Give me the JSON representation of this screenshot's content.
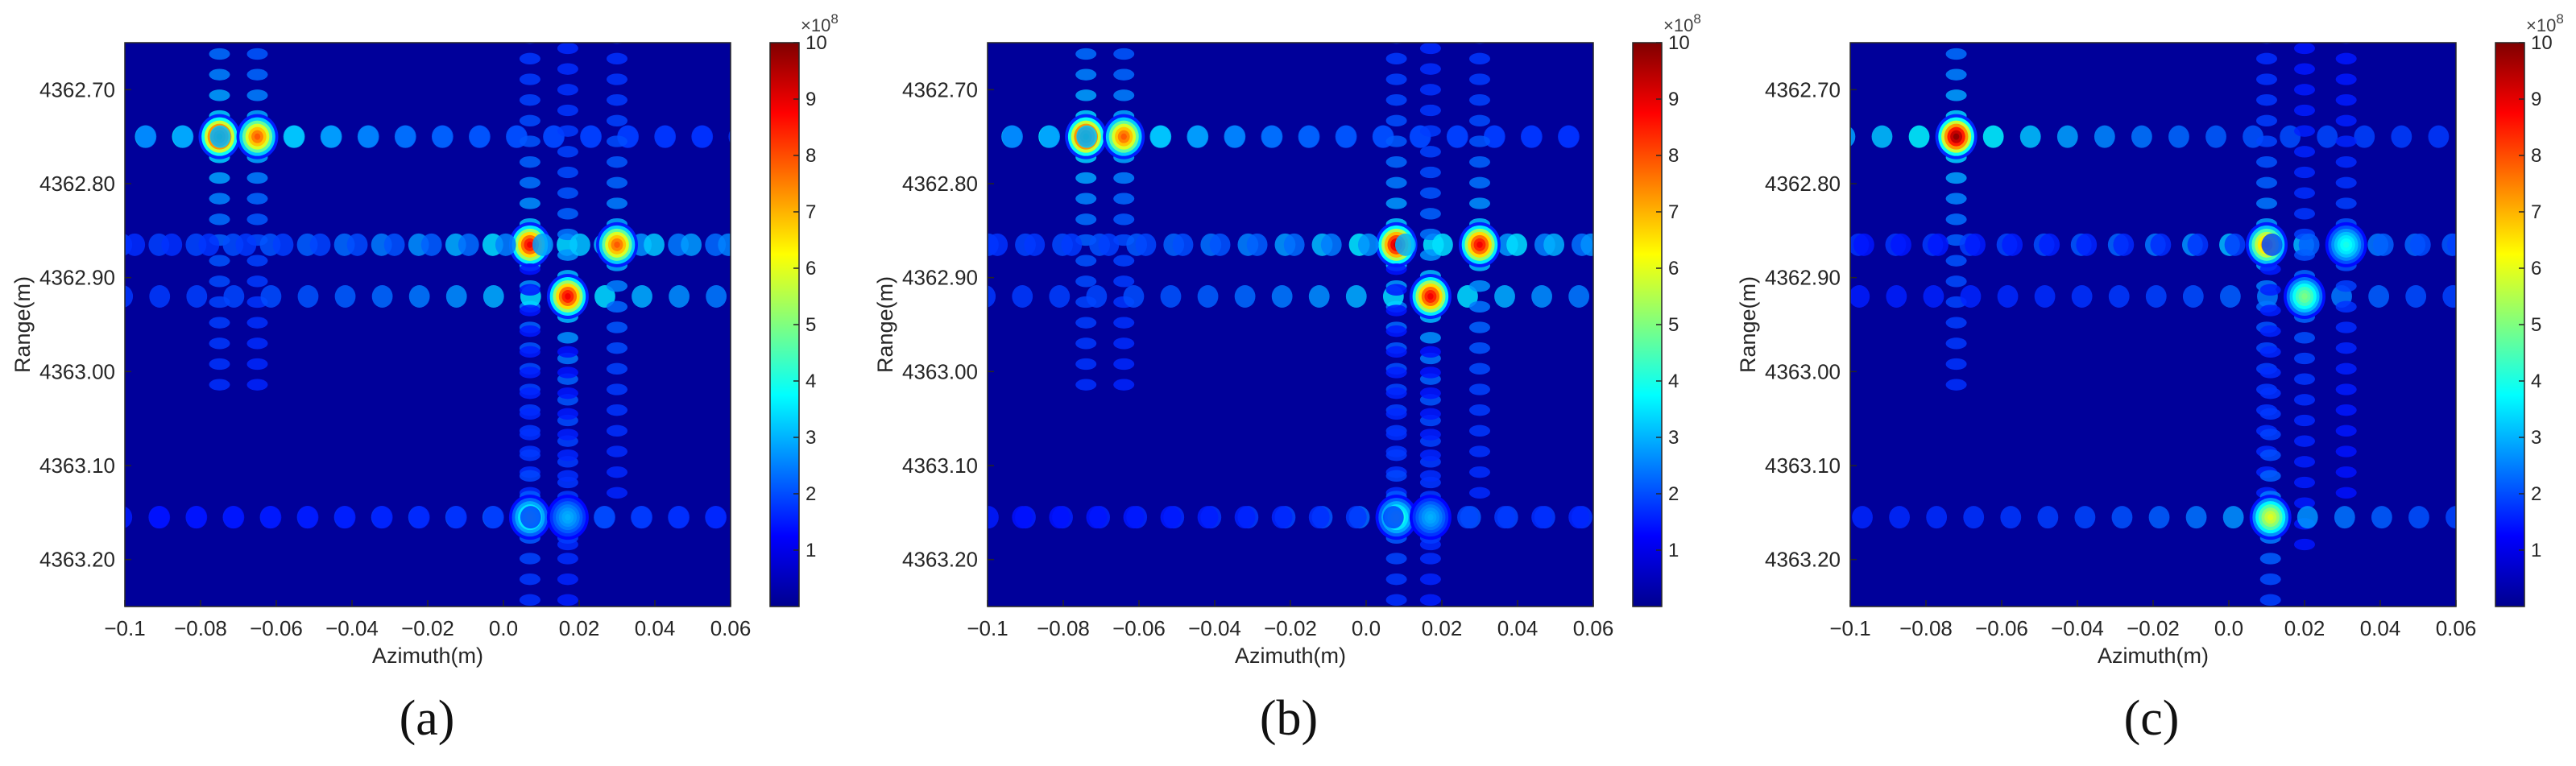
{
  "colors": {
    "colormap": [
      "#00008f",
      "#0000ff",
      "#0080ff",
      "#00ffff",
      "#80ff80",
      "#ffff00",
      "#ff8000",
      "#ff0000",
      "#800000"
    ],
    "axis": "#262626"
  },
  "chart_data": [
    {
      "type": "heatmap",
      "panel_label": "(a)",
      "xlabel": "Azimuth(m)",
      "ylabel": "Range(m)",
      "xlim": [
        -0.1,
        0.06
      ],
      "ylim": [
        4362.65,
        4363.25
      ],
      "y_reversed": true,
      "x_ticks": [
        "−0.1",
        "−0.08",
        "−0.06",
        "−0.04",
        "−0.02",
        "0.0",
        "0.02",
        "0.04",
        "0.06"
      ],
      "y_ticks": [
        "4362.70",
        "4362.80",
        "4362.90",
        "4363.00",
        "4363.10",
        "4363.20"
      ],
      "colorbar": {
        "min": 0,
        "max": 10,
        "ticks": [
          "1",
          "2",
          "3",
          "4",
          "5",
          "6",
          "7",
          "8",
          "9",
          "10"
        ],
        "exponent": "×10",
        "exponent_power": "8"
      },
      "peaks": [
        {
          "x": -0.075,
          "y": 4362.75,
          "value": 10
        },
        {
          "x": -0.065,
          "y": 4362.75,
          "value": 8
        },
        {
          "x": 0.007,
          "y": 4362.865,
          "value": 9
        },
        {
          "x": 0.017,
          "y": 4362.92,
          "value": 9
        },
        {
          "x": 0.03,
          "y": 4362.865,
          "value": 8
        },
        {
          "x": 0.007,
          "y": 4363.155,
          "value": 4.5
        },
        {
          "x": 0.017,
          "y": 4363.155,
          "value": 3
        }
      ]
    },
    {
      "type": "heatmap",
      "panel_label": "(b)",
      "xlabel": "Azimuth(m)",
      "ylabel": "Range(m)",
      "xlim": [
        -0.1,
        0.06
      ],
      "ylim": [
        4362.65,
        4363.25
      ],
      "y_reversed": true,
      "x_ticks": [
        "−0.1",
        "−0.08",
        "−0.06",
        "−0.04",
        "−0.02",
        "0.0",
        "0.02",
        "0.04",
        "0.06"
      ],
      "y_ticks": [
        "4362.70",
        "4362.80",
        "4362.90",
        "4363.00",
        "4363.10",
        "4363.20"
      ],
      "colorbar": {
        "min": 0,
        "max": 10,
        "ticks": [
          "1",
          "2",
          "3",
          "4",
          "5",
          "6",
          "7",
          "8",
          "9",
          "10"
        ],
        "exponent": "×10",
        "exponent_power": "8"
      },
      "peaks": [
        {
          "x": -0.074,
          "y": 4362.75,
          "value": 10
        },
        {
          "x": -0.064,
          "y": 4362.75,
          "value": 8
        },
        {
          "x": 0.008,
          "y": 4362.865,
          "value": 9.5
        },
        {
          "x": 0.017,
          "y": 4362.92,
          "value": 9
        },
        {
          "x": 0.03,
          "y": 4362.865,
          "value": 9
        },
        {
          "x": 0.008,
          "y": 4363.155,
          "value": 4.5
        },
        {
          "x": 0.017,
          "y": 4363.155,
          "value": 3
        }
      ]
    },
    {
      "type": "heatmap",
      "panel_label": "(c)",
      "xlabel": "Azimuth(m)",
      "ylabel": "Range(m)",
      "xlim": [
        -0.1,
        0.06
      ],
      "ylim": [
        4362.65,
        4363.25
      ],
      "y_reversed": true,
      "x_ticks": [
        "−0.1",
        "−0.08",
        "−0.06",
        "−0.04",
        "−0.02",
        "0.0",
        "0.02",
        "0.04",
        "0.06"
      ],
      "y_ticks": [
        "4362.70",
        "4362.80",
        "4362.90",
        "4363.00",
        "4363.10",
        "4363.20"
      ],
      "colorbar": {
        "min": 0,
        "max": 10,
        "ticks": [
          "1",
          "2",
          "3",
          "4",
          "5",
          "6",
          "7",
          "8",
          "9",
          "10"
        ],
        "exponent": "×10",
        "exponent_power": "8"
      },
      "peaks": [
        {
          "x": -0.072,
          "y": 4362.75,
          "value": 10
        },
        {
          "x": 0.01,
          "y": 4362.865,
          "value": 7.5
        },
        {
          "x": 0.02,
          "y": 4362.92,
          "value": 5
        },
        {
          "x": 0.031,
          "y": 4362.865,
          "value": 4
        },
        {
          "x": 0.011,
          "y": 4363.155,
          "value": 6
        }
      ]
    }
  ]
}
